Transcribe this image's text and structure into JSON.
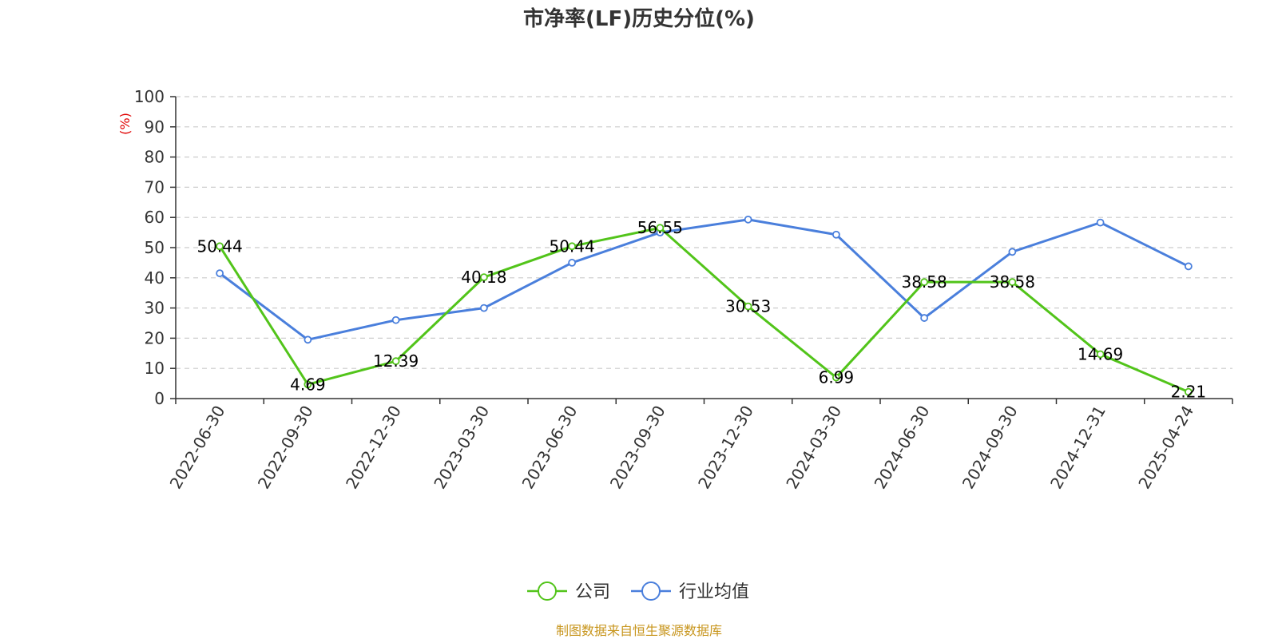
{
  "chart_data": {
    "type": "line",
    "title": "市净率(LF)历史分位(%)",
    "ylabel": "(%)",
    "xlabel": "",
    "ylim": [
      0,
      100
    ],
    "yticks": [
      0,
      10,
      20,
      30,
      40,
      50,
      60,
      70,
      80,
      90,
      100
    ],
    "grid": true,
    "legend_position": "bottom",
    "categories": [
      "2022-06-30",
      "2022-09-30",
      "2022-12-30",
      "2023-03-30",
      "2023-06-30",
      "2023-09-30",
      "2023-12-30",
      "2024-03-30",
      "2024-06-30",
      "2024-09-30",
      "2024-12-31",
      "2025-04-24"
    ],
    "series": [
      {
        "name": "公司",
        "color": "#52c41a",
        "values": [
          50.44,
          4.69,
          12.39,
          40.18,
          50.44,
          56.55,
          30.53,
          6.99,
          38.58,
          38.58,
          14.69,
          2.21
        ],
        "labels": [
          "50.44",
          "4.69",
          "12.39",
          "40.18",
          "50.44",
          "56.55",
          "30.53",
          "6.99",
          "38.58",
          "38.58",
          "14.69",
          "2.21"
        ]
      },
      {
        "name": "行业均值",
        "color": "#4a7fdc",
        "values": [
          41.5,
          19.5,
          26.0,
          30.0,
          45.0,
          55.0,
          59.3,
          54.3,
          26.7,
          48.6,
          58.3,
          43.8
        ]
      }
    ],
    "source": "制图数据来自恒生聚源数据库"
  }
}
